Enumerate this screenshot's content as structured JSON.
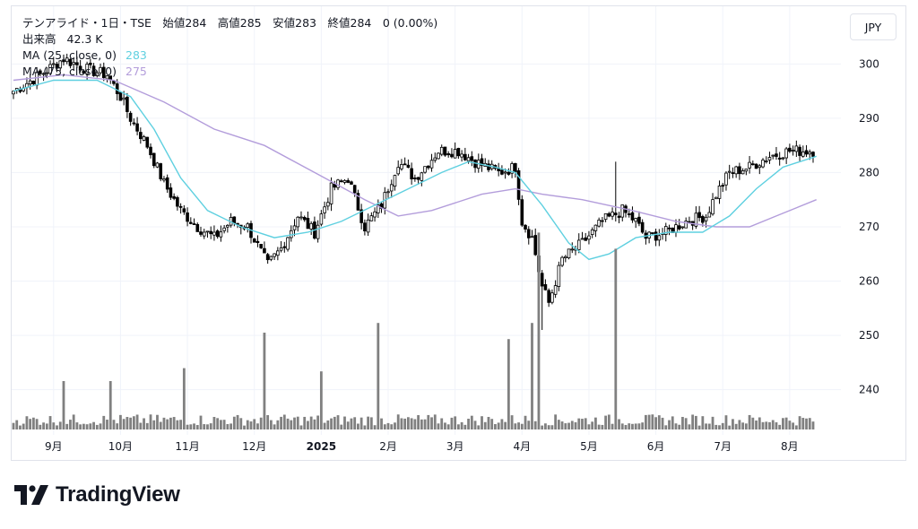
{
  "legend": {
    "title_line": "テンアライド・1日・TSE　始値284　高値285　安値283　終値284　0 (0.00%)",
    "volume_label": "出来高",
    "volume_value": "42.3 K",
    "ma25_label": "MA (25, close, 0)",
    "ma25_value": "283",
    "ma75_label": "MA (75, close, 0)",
    "ma75_value": "275"
  },
  "currency_button": "JPY",
  "brand": {
    "name": "TradingView",
    "logo_icon": "tradingview-logo-icon"
  },
  "colors": {
    "up": "#ffffff",
    "down": "#000000",
    "wick": "#000000",
    "ma25": "#5fd0e0",
    "ma75": "#b39ddb",
    "volume": "#808080",
    "grid": "#f0f3fa"
  },
  "chart_data": {
    "type": "candlestick",
    "y_axis": {
      "ticks": [
        300,
        290,
        280,
        270,
        260,
        250,
        240
      ],
      "ylim": [
        233,
        306
      ]
    },
    "x_axis": {
      "labels": [
        "9月",
        "10月",
        "11月",
        "12月",
        "2025",
        "2月",
        "3月",
        "4月",
        "5月",
        "6月",
        "7月",
        "8月"
      ]
    },
    "anchors": [
      [
        0,
        295
      ],
      [
        8,
        298
      ],
      [
        15,
        301
      ],
      [
        22,
        299
      ],
      [
        28,
        298
      ],
      [
        32,
        294
      ],
      [
        35,
        290
      ],
      [
        40,
        285
      ],
      [
        45,
        278
      ],
      [
        50,
        273
      ],
      [
        55,
        270
      ],
      [
        60,
        268
      ],
      [
        65,
        271
      ],
      [
        70,
        270
      ],
      [
        76,
        263
      ],
      [
        80,
        266
      ],
      [
        85,
        272
      ],
      [
        90,
        269
      ],
      [
        95,
        277
      ],
      [
        100,
        279
      ],
      [
        105,
        270
      ],
      [
        110,
        274
      ],
      [
        115,
        282
      ],
      [
        120,
        279
      ],
      [
        127,
        284
      ],
      [
        133,
        284
      ],
      [
        138,
        282
      ],
      [
        145,
        280
      ],
      [
        150,
        281
      ],
      [
        152,
        271
      ],
      [
        155,
        268
      ],
      [
        158,
        259
      ],
      [
        160,
        256
      ],
      [
        164,
        264
      ],
      [
        170,
        267
      ],
      [
        176,
        271
      ],
      [
        182,
        273
      ],
      [
        186,
        271
      ],
      [
        189,
        268
      ],
      [
        195,
        269
      ],
      [
        201,
        271
      ],
      [
        207,
        272
      ],
      [
        210,
        276
      ],
      [
        214,
        280
      ],
      [
        220,
        281
      ],
      [
        226,
        283
      ],
      [
        232,
        284
      ],
      [
        240,
        284
      ]
    ],
    "ma25": [
      [
        0,
        295
      ],
      [
        12,
        297
      ],
      [
        25,
        297
      ],
      [
        35,
        294
      ],
      [
        42,
        288
      ],
      [
        50,
        279
      ],
      [
        58,
        273
      ],
      [
        68,
        270
      ],
      [
        78,
        268
      ],
      [
        88,
        269
      ],
      [
        98,
        271
      ],
      [
        108,
        274
      ],
      [
        118,
        277
      ],
      [
        128,
        280
      ],
      [
        136,
        282
      ],
      [
        144,
        281
      ],
      [
        150,
        280
      ],
      [
        158,
        274
      ],
      [
        166,
        267
      ],
      [
        172,
        264
      ],
      [
        178,
        265
      ],
      [
        186,
        268
      ],
      [
        196,
        269
      ],
      [
        206,
        269
      ],
      [
        214,
        272
      ],
      [
        222,
        277
      ],
      [
        230,
        281
      ],
      [
        240,
        283
      ]
    ],
    "ma75": [
      [
        0,
        297
      ],
      [
        15,
        298
      ],
      [
        30,
        297
      ],
      [
        45,
        293
      ],
      [
        60,
        288
      ],
      [
        75,
        285
      ],
      [
        90,
        280
      ],
      [
        105,
        275
      ],
      [
        115,
        272
      ],
      [
        125,
        273
      ],
      [
        140,
        276
      ],
      [
        150,
        277
      ],
      [
        158,
        276
      ],
      [
        170,
        275
      ],
      [
        185,
        273
      ],
      [
        198,
        271
      ],
      [
        210,
        270
      ],
      [
        220,
        270
      ],
      [
        228,
        272
      ],
      [
        240,
        275
      ]
    ],
    "volume_spikes": [
      [
        15,
        0.15
      ],
      [
        29,
        0.15
      ],
      [
        51,
        0.19
      ],
      [
        75,
        0.3
      ],
      [
        92,
        0.18
      ],
      [
        109,
        0.33
      ],
      [
        148,
        0.28
      ],
      [
        155,
        0.33
      ],
      [
        157,
        0.61
      ],
      [
        180,
        0.56
      ]
    ],
    "volume_max_label": "42.3 K"
  }
}
